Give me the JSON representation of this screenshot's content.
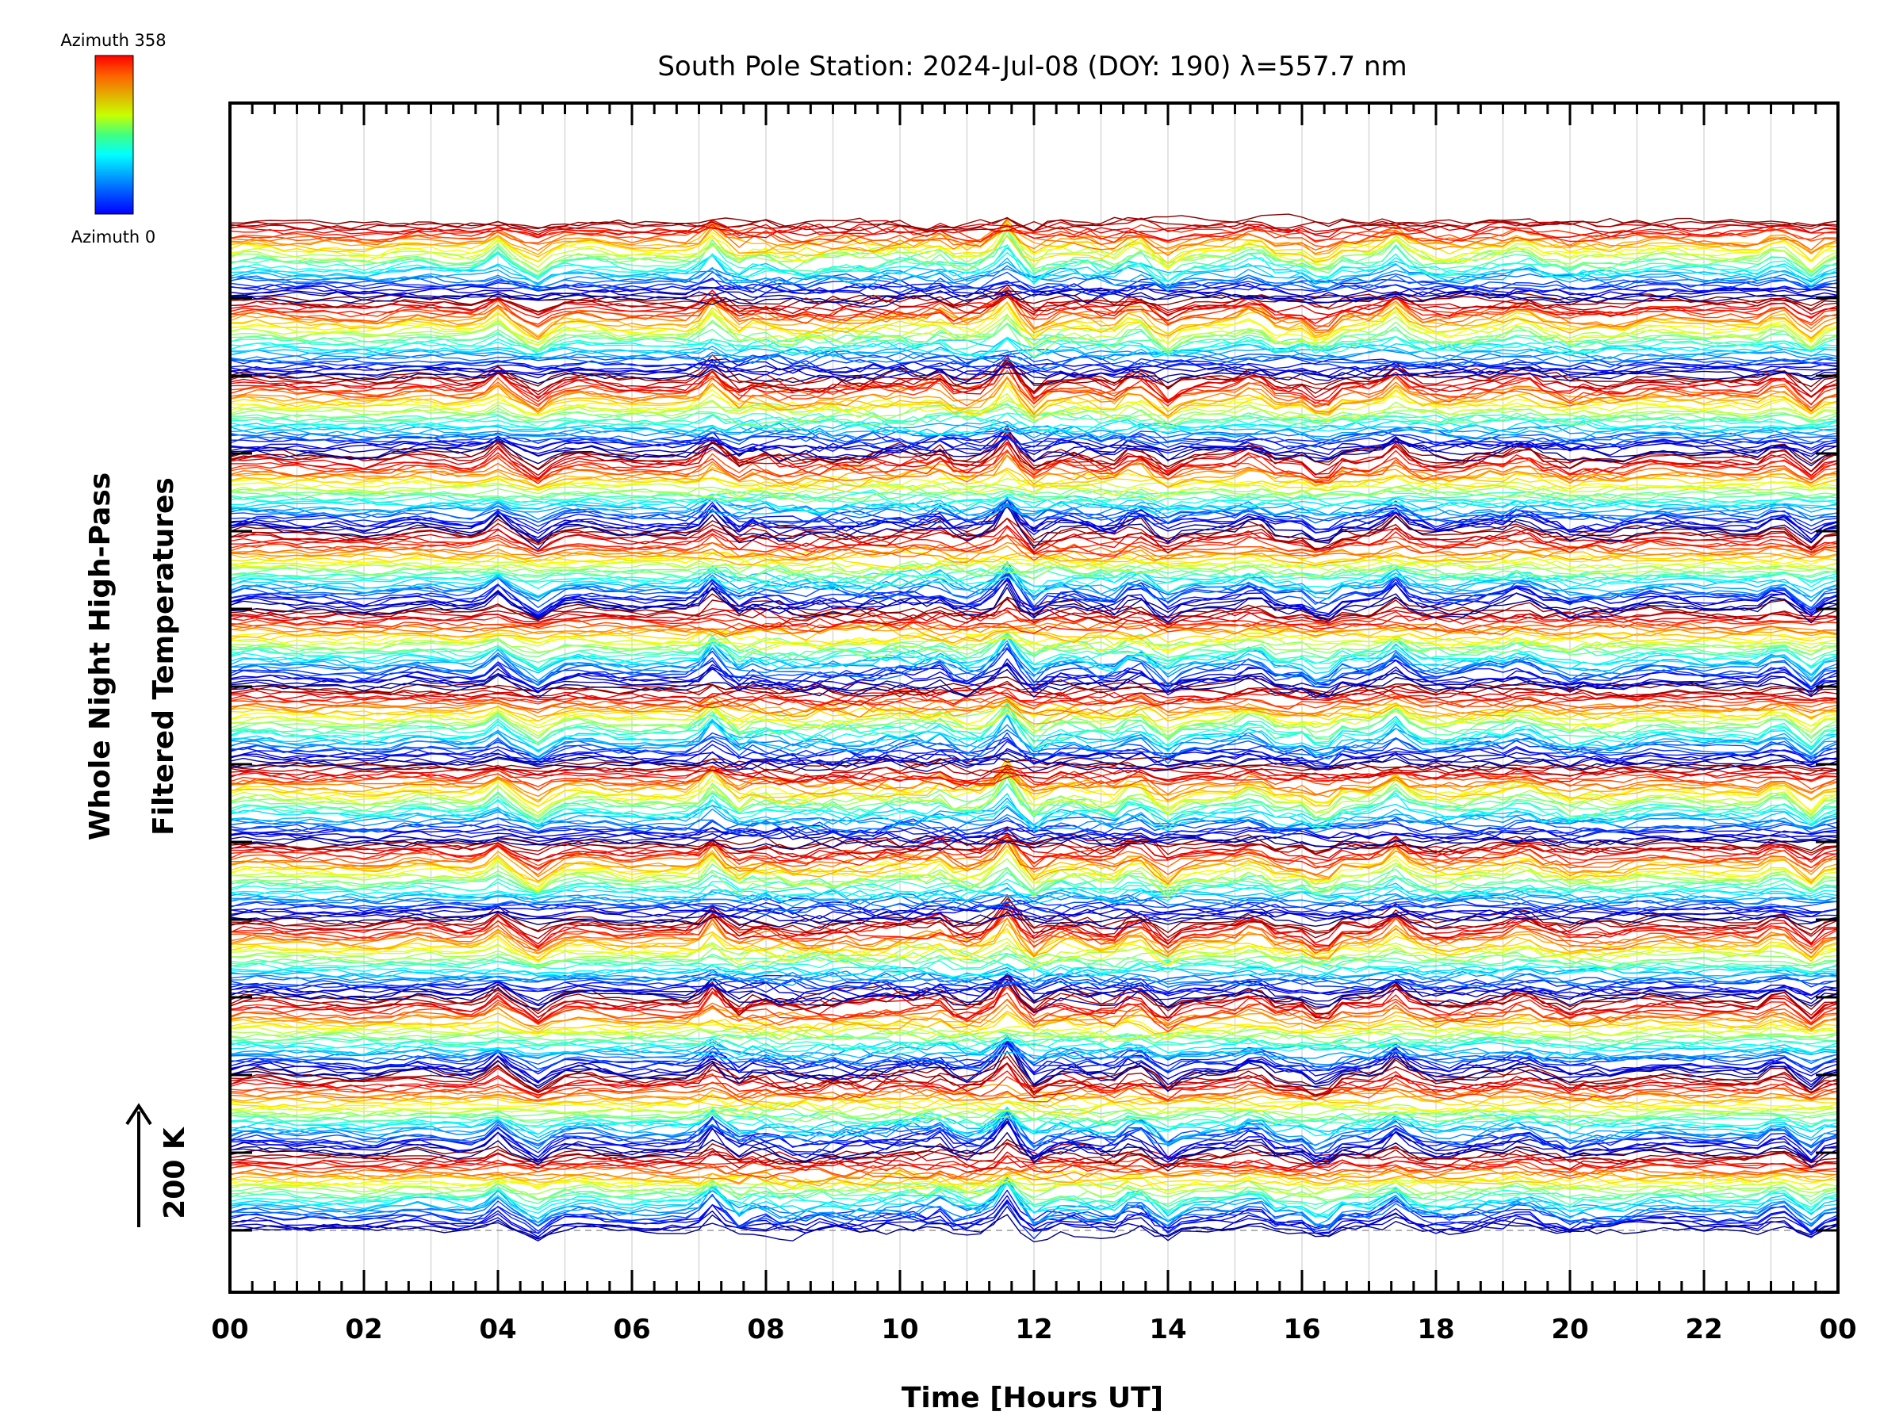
{
  "chart_data": {
    "type": "line",
    "title": "South Pole Station: 2024-Jul-08 (DOY: 190) λ=557.7 nm",
    "xlabel": "Time [Hours UT]",
    "ylabel_line1": "Whole Night High-Pass",
    "ylabel_line2": "Filtered Temperatures",
    "scale_label": "200 K",
    "colorbar": {
      "label_max": "Azimuth 358",
      "label_min": "Azimuth 0",
      "min": 0,
      "max": 358
    },
    "x_ticks": [
      "00",
      "02",
      "04",
      "06",
      "08",
      "10",
      "12",
      "14",
      "16",
      "18",
      "20",
      "22",
      "00"
    ],
    "xlim": [
      0,
      24
    ],
    "n_groups": 13,
    "curves_per_group": 36,
    "group_spacing_K": 100,
    "curve_spacing_K": 2.8,
    "n_samples": 121,
    "colors": {
      "axis": "#000000",
      "grid": "#d0d0d0",
      "baseline_dash": "#999999"
    },
    "note": "Stacked high-pass filtered temperature curves, colored by azimuth (blue=0 to red=358). Curve sample values are synthesized approximately from visual features."
  }
}
